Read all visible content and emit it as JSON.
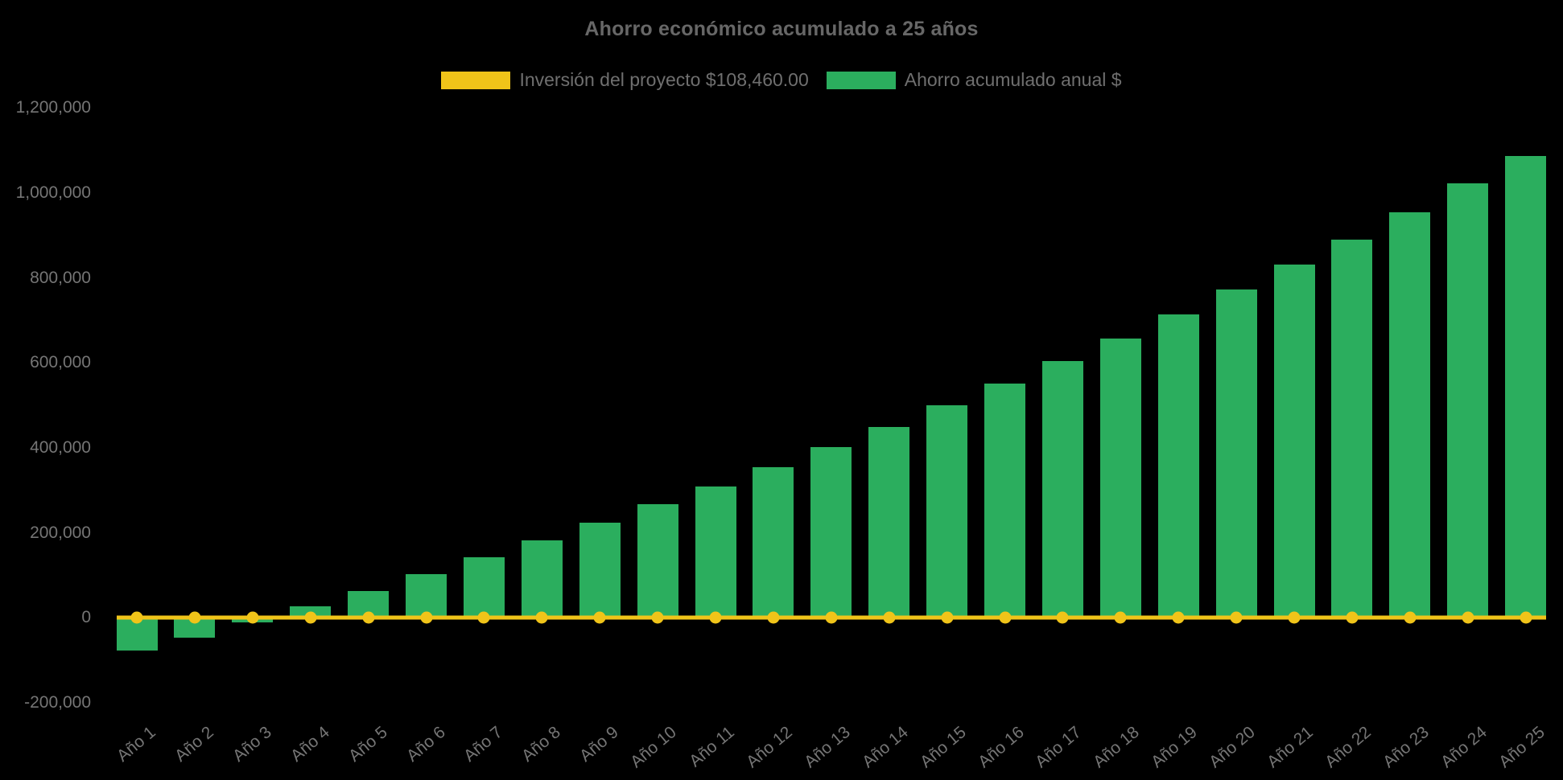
{
  "title": "Ahorro económico acumulado a 25 años",
  "legend": {
    "items": [
      {
        "label": "Inversión del proyecto $108,460.00",
        "color": "#f0c419",
        "series": "line"
      },
      {
        "label": "Ahorro acumulado anual $",
        "color": "#2bae5e",
        "series": "bar"
      }
    ]
  },
  "colors": {
    "background": "#000000",
    "bar_green": "#2bae5e",
    "investment_yellow": "#f0c419",
    "title_text": "#676767",
    "axis_text": "#757575"
  },
  "chart_data": {
    "type": "bar",
    "title": "Ahorro económico acumulado a 25 años",
    "xlabel": "",
    "ylabel": "",
    "ylim": [
      -200000,
      1200000
    ],
    "ytick_step": 200000,
    "grid": false,
    "legend_position": "top",
    "categories": [
      "Año 1",
      "Año 2",
      "Año 3",
      "Año 4",
      "Año 5",
      "Año 6",
      "Año 7",
      "Año 8",
      "Año 9",
      "Año 10",
      "Año 11",
      "Año 12",
      "Año 13",
      "Año 14",
      "Año 15",
      "Año 16",
      "Año 17",
      "Año 18",
      "Año 19",
      "Año 20",
      "Año 21",
      "Año 22",
      "Año 23",
      "Año 24",
      "Año 25"
    ],
    "yticks": [
      {
        "value": -200000,
        "label": "-200,000"
      },
      {
        "value": 0,
        "label": "0"
      },
      {
        "value": 200000,
        "label": "200,000"
      },
      {
        "value": 400000,
        "label": "400,000"
      },
      {
        "value": 600000,
        "label": "600,000"
      },
      {
        "value": 800000,
        "label": "800,000"
      },
      {
        "value": 1000000,
        "label": "1,000,000"
      },
      {
        "value": 1200000,
        "label": "1,200,000"
      }
    ],
    "series": [
      {
        "name": "Ahorro acumulado anual $",
        "type": "bar",
        "color": "#2bae5e",
        "values": [
          -77000,
          -46000,
          -11500,
          27000,
          63000,
          103000,
          142000,
          183000,
          224000,
          267000,
          310000,
          355000,
          402000,
          450000,
          501000,
          552000,
          604000,
          658000,
          714000,
          772000,
          831000,
          891000,
          955000,
          1022000,
          1086000
        ]
      },
      {
        "name": "Inversión del proyecto $108,460.00",
        "type": "line",
        "color": "#f0c419",
        "investment_amount_label": 108460,
        "plotted_constant_value": 0,
        "values": [
          0,
          0,
          0,
          0,
          0,
          0,
          0,
          0,
          0,
          0,
          0,
          0,
          0,
          0,
          0,
          0,
          0,
          0,
          0,
          0,
          0,
          0,
          0,
          0,
          0
        ]
      }
    ]
  }
}
